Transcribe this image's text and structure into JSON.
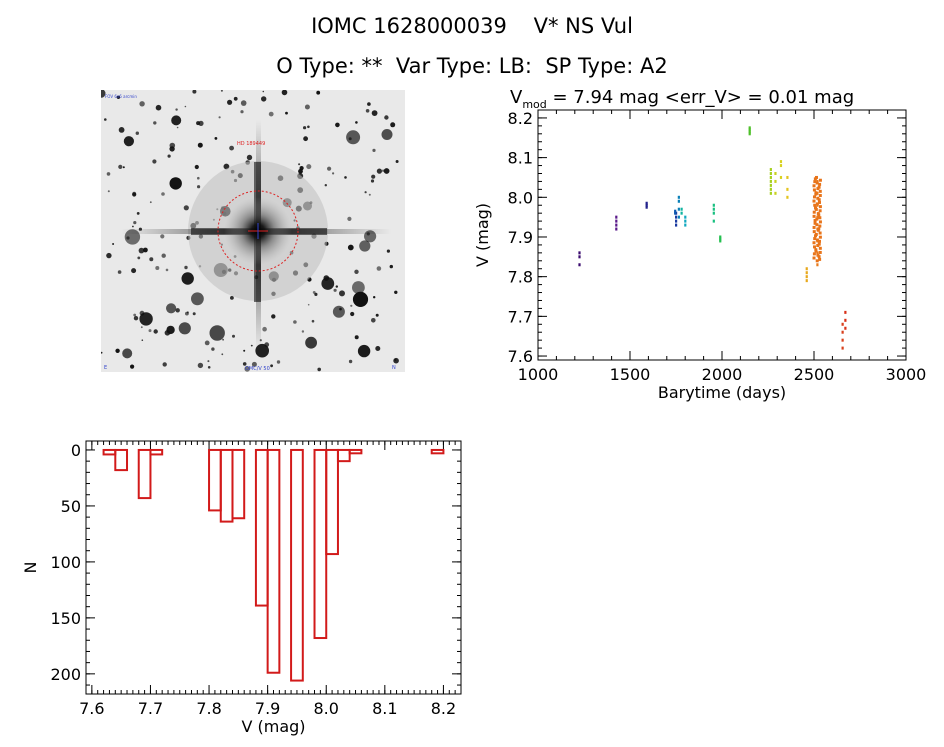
{
  "header": {
    "id": "IOMC 1628000039",
    "name": "V* NS Vul",
    "otype": "O Type: **",
    "vartype": "Var Type: LB:",
    "sptype": "SP Type: A2"
  },
  "finder": {
    "top_left_label": "FOV 6x6 arcmin",
    "center_label": "HD 189449",
    "bottom_label": "OMC/V 50",
    "left_corner_label": "E",
    "right_corner_label": "N"
  },
  "lightcurve_title": {
    "v": "V",
    "sub": "mod",
    "text": " = 7.94 mag <err_V> = 0.01 mag"
  },
  "colors": {
    "hist": "#d21a1a"
  },
  "chart_data": [
    {
      "type": "scatter",
      "title": "Vmod = 7.94 mag <err_V> = 0.01 mag",
      "xlabel": "Barytime (days)",
      "ylabel": "V (mag)",
      "xlim": [
        1000,
        3000
      ],
      "ylim": [
        8.22,
        7.59
      ],
      "xticks": [
        1000,
        1500,
        2000,
        2500,
        3000
      ],
      "yticks": [
        7.6,
        7.7,
        7.8,
        7.9,
        8.0,
        8.1,
        8.2
      ],
      "groups": [
        {
          "x": 1225,
          "y": [
            7.83,
            7.85,
            7.86
          ],
          "color": "#3a0a6e"
        },
        {
          "x": 1425,
          "y": [
            7.92,
            7.93,
            7.94,
            7.95
          ],
          "color": "#5a1a8a"
        },
        {
          "x": 1590,
          "y": [
            7.975,
            7.98,
            7.985
          ],
          "color": "#23238c"
        },
        {
          "x": 1750,
          "y": [
            7.93,
            7.94,
            7.95,
            7.96
          ],
          "color": "#1a3aa0"
        },
        {
          "x": 1745,
          "y": [
            7.96,
            7.965
          ],
          "color": "#0f58b0"
        },
        {
          "x": 1765,
          "y": [
            7.95,
            7.97,
            7.99,
            8.0
          ],
          "color": "#0a80b8"
        },
        {
          "x": 1800,
          "y": [
            7.93,
            7.94,
            7.95
          ],
          "color": "#11a8c0"
        },
        {
          "x": 1780,
          "y": [
            7.96,
            7.97
          ],
          "color": "#12b4a0"
        },
        {
          "x": 1955,
          "y": [
            7.94,
            7.96,
            7.97,
            7.98
          ],
          "color": "#19c080"
        },
        {
          "x": 1990,
          "y": [
            7.89,
            7.895,
            7.9
          ],
          "color": "#25c050"
        },
        {
          "x": 2150,
          "y": [
            8.16,
            8.165,
            8.17,
            8.175
          ],
          "color": "#4ec02a"
        },
        {
          "x": 2265,
          "y": [
            8.01,
            8.02,
            8.03,
            8.04,
            8.05,
            8.06,
            8.07
          ],
          "color": "#a6d020"
        },
        {
          "x": 2290,
          "y": [
            8.01,
            8.04,
            8.06
          ],
          "color": "#c8d21e"
        },
        {
          "x": 2320,
          "y": [
            8.05,
            8.08,
            8.09
          ],
          "color": "#d8d220"
        },
        {
          "x": 2355,
          "y": [
            8.0,
            8.02,
            8.05
          ],
          "color": "#e4c41e"
        },
        {
          "x": 2460,
          "y": [
            7.79,
            7.8,
            7.81,
            7.82
          ],
          "color": "#e8a81c"
        },
        {
          "x": 2518,
          "y": [
            7.83,
            7.86,
            7.89,
            7.92,
            7.95,
            7.98,
            8.01,
            8.04
          ],
          "color": "#e87a1c"
        },
        {
          "x": 2655,
          "y": [
            7.62,
            7.64,
            7.66,
            7.68
          ],
          "color": "#d8401c"
        },
        {
          "x": 2670,
          "y": [
            7.67,
            7.69,
            7.71
          ],
          "color": "#d83018"
        }
      ],
      "dense_segment": {
        "x_start": 2500,
        "x_end": 2535,
        "y_start": 7.84,
        "y_end": 8.05,
        "color": "#e8741a"
      }
    },
    {
      "type": "bar",
      "title": "",
      "xlabel": "V (mag)",
      "ylabel": "N",
      "xlim": [
        7.59,
        8.23
      ],
      "ylim": [
        -8,
        218
      ],
      "xticks": [
        7.6,
        7.7,
        7.8,
        7.9,
        8.0,
        8.1,
        8.2
      ],
      "yticks": [
        0,
        50,
        100,
        150,
        200
      ],
      "bin_width": 0.02,
      "bins": [
        {
          "left": 7.62,
          "count": 4
        },
        {
          "left": 7.64,
          "count": 18
        },
        {
          "left": 7.66,
          "count": 0
        },
        {
          "left": 7.68,
          "count": 43
        },
        {
          "left": 7.7,
          "count": 4
        },
        {
          "left": 7.8,
          "count": 54
        },
        {
          "left": 7.82,
          "count": 64
        },
        {
          "left": 7.84,
          "count": 61
        },
        {
          "left": 7.86,
          "count": 0
        },
        {
          "left": 7.88,
          "count": 139
        },
        {
          "left": 7.9,
          "count": 199
        },
        {
          "left": 7.92,
          "count": 0
        },
        {
          "left": 7.94,
          "count": 206
        },
        {
          "left": 7.96,
          "count": 0
        },
        {
          "left": 7.98,
          "count": 168
        },
        {
          "left": 8.0,
          "count": 93
        },
        {
          "left": 8.02,
          "count": 10
        },
        {
          "left": 8.04,
          "count": 3
        },
        {
          "left": 8.06,
          "count": 0
        },
        {
          "left": 8.08,
          "count": 0
        },
        {
          "left": 8.1,
          "count": 0
        },
        {
          "left": 8.12,
          "count": 0
        },
        {
          "left": 8.14,
          "count": 0
        },
        {
          "left": 8.16,
          "count": 0
        },
        {
          "left": 8.18,
          "count": 3
        }
      ]
    }
  ]
}
